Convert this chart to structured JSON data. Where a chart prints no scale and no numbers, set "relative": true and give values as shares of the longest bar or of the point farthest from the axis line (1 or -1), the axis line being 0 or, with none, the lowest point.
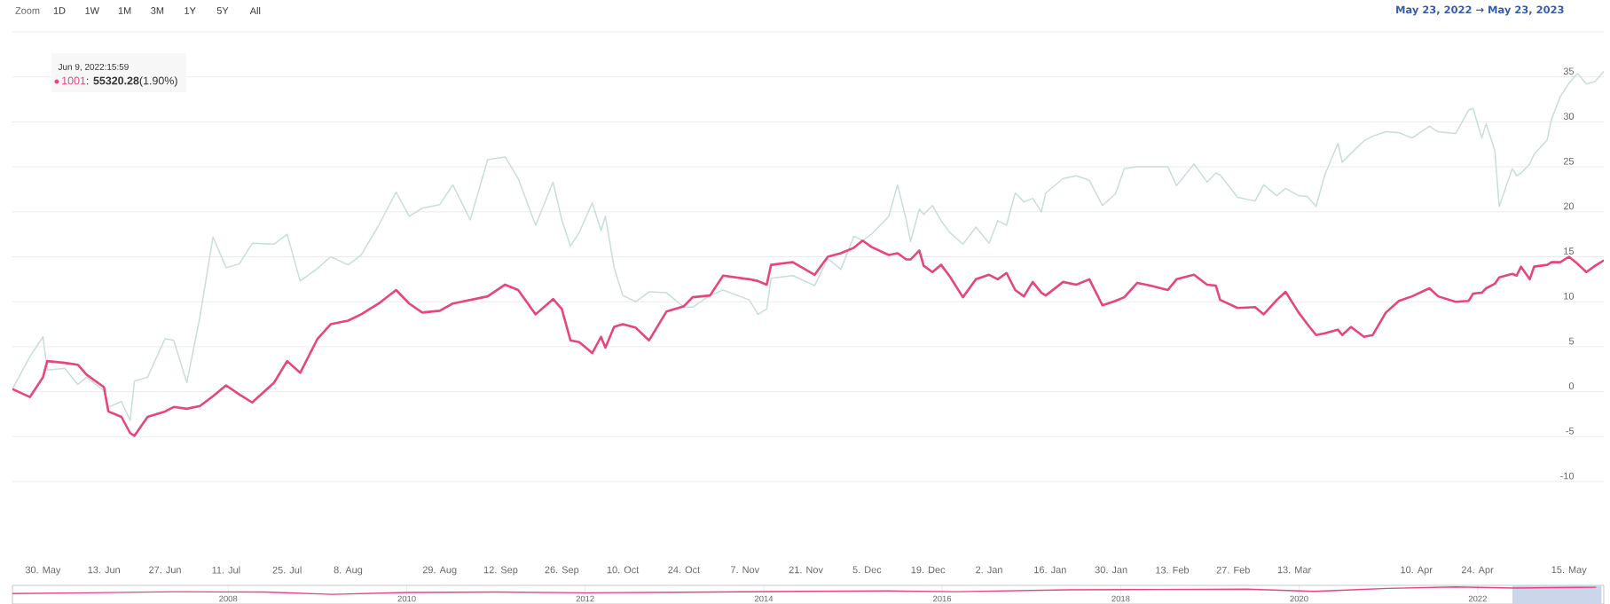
{
  "chart_data": [
    {
      "type": "line",
      "subtitle": "May 23, 2022 → May 23, 2023",
      "annotations": [
        "Zoom",
        "1D",
        "1W",
        "1M",
        "3M",
        "1Y",
        "5Y",
        "All",
        "Jun 9, 2022:15:59",
        ": **55320.28**(1.90%)"
      ],
      "x": [
        "2022-05-23",
        "2022-05-27",
        "2022-05-30",
        "2022-05-31",
        "2022-06-04",
        "2022-06-07",
        "2022-06-09",
        "2022-06-13",
        "2022-06-14",
        "2022-06-17",
        "2022-06-19",
        "2022-06-20",
        "2022-06-23",
        "2022-06-27",
        "2022-06-29",
        "2022-07-02",
        "2022-07-05",
        "2022-07-08",
        "2022-07-11",
        "2022-07-14",
        "2022-07-17",
        "2022-07-22",
        "2022-07-25",
        "2022-07-28",
        "2022-08-01",
        "2022-08-04",
        "2022-08-08",
        "2022-08-11",
        "2022-08-15",
        "2022-08-19",
        "2022-08-22",
        "2022-08-25",
        "2022-08-29",
        "2022-09-01",
        "2022-09-05",
        "2022-09-09",
        "2022-09-13",
        "2022-09-16",
        "2022-09-20",
        "2022-09-24",
        "2022-09-26",
        "2022-09-28",
        "2022-09-30",
        "2022-10-03",
        "2022-10-05",
        "2022-10-06",
        "2022-10-08",
        "2022-10-10",
        "2022-10-13",
        "2022-10-16",
        "2022-10-20",
        "2022-10-24",
        "2022-10-26",
        "2022-10-30",
        "2022-11-02",
        "2022-11-08",
        "2022-11-10",
        "2022-11-12",
        "2022-11-13",
        "2022-11-18",
        "2022-11-23",
        "2022-11-26",
        "2022-11-29",
        "2022-12-02",
        "2022-12-04",
        "2022-12-06",
        "2022-12-10",
        "2022-12-12",
        "2022-12-14",
        "2022-12-15",
        "2022-12-17",
        "2022-12-18",
        "2022-12-20",
        "2022-12-22",
        "2022-12-24",
        "2022-12-27",
        "2022-12-30",
        "2023-01-02",
        "2023-01-04",
        "2023-01-06",
        "2023-01-08",
        "2023-01-10",
        "2023-01-12",
        "2023-01-14",
        "2023-01-15",
        "2023-01-19",
        "2023-01-22",
        "2023-01-25",
        "2023-01-28",
        "2023-01-31",
        "2023-02-02",
        "2023-02-05",
        "2023-02-08",
        "2023-02-12",
        "2023-02-14",
        "2023-02-18",
        "2023-02-21",
        "2023-02-23",
        "2023-02-24",
        "2023-02-28",
        "2023-03-04",
        "2023-03-06",
        "2023-03-09",
        "2023-03-11",
        "2023-03-14",
        "2023-03-16",
        "2023-03-18",
        "2023-03-20",
        "2023-03-23",
        "2023-03-24",
        "2023-03-26",
        "2023-03-29",
        "2023-03-31",
        "2023-04-03",
        "2023-04-06",
        "2023-04-09",
        "2023-04-13",
        "2023-04-15",
        "2023-04-19",
        "2023-04-22",
        "2023-04-23",
        "2023-04-25",
        "2023-04-26",
        "2023-04-28",
        "2023-04-29",
        "2023-05-02",
        "2023-05-03",
        "2023-05-04",
        "2023-05-06",
        "2023-05-07",
        "2023-05-10",
        "2023-05-11",
        "2023-05-13",
        "2023-05-15",
        "2023-05-17",
        "2023-05-19",
        "2023-05-21",
        "2023-05-23"
      ],
      "series": [
        {
          "color": "#c7dedb",
          "values": [
            0.3,
            3.9,
            6.1,
            2.4,
            2.6,
            0.8,
            1.6,
            0.1,
            -1.7,
            -1.1,
            -3.2,
            1.2,
            1.6,
            5.9,
            5.7,
            1.0,
            8.3,
            17.2,
            13.8,
            14.2,
            16.5,
            16.4,
            17.5,
            12.3,
            13.7,
            15.0,
            14.1,
            15.2,
            18.5,
            22.2,
            19.5,
            20.4,
            20.8,
            23.0,
            19.1,
            25.8,
            26.1,
            23.7,
            18.5,
            23.3,
            19.1,
            16.2,
            17.7,
            21.0,
            17.9,
            19.5,
            13.8,
            10.7,
            10.0,
            11.1,
            11.0,
            9.4,
            9.4,
            10.7,
            11.3,
            10.2,
            8.6,
            9.2,
            12.6,
            12.9,
            11.8,
            14.8,
            13.6,
            17.3,
            16.8,
            17.5,
            19.5,
            23.0,
            19.1,
            16.7,
            20.3,
            19.7,
            20.7,
            19.0,
            17.7,
            16.4,
            18.3,
            16.5,
            19.0,
            18.5,
            22.1,
            21.1,
            21.5,
            20.0,
            22.1,
            23.7,
            24.0,
            23.5,
            20.7,
            22.0,
            24.8,
            25.0,
            25.0,
            25.0,
            22.9,
            25.3,
            23.3,
            24.3,
            24.1,
            21.6,
            21.2,
            23.0,
            21.8,
            22.6,
            21.8,
            21.7,
            20.6,
            24.1,
            27.6,
            25.5,
            26.5,
            27.9,
            28.4,
            28.9,
            28.8,
            28.2,
            29.5,
            28.9,
            28.7,
            31.3,
            31.5,
            28.2,
            29.8,
            26.8,
            20.6,
            24.8,
            24.0,
            24.3,
            25.3,
            26.4,
            28.0,
            30.3,
            32.8,
            34.3,
            35.4,
            34.2,
            34.5,
            35.6
          ]
        },
        {
          "name": "1001",
          "color": "#e8457e",
          "values": [
            0.3,
            -0.6,
            1.6,
            3.4,
            3.2,
            3.0,
            1.9,
            0.5,
            -2.2,
            -2.8,
            -4.6,
            -4.9,
            -2.8,
            -2.2,
            -1.7,
            -1.9,
            -1.6,
            -0.5,
            0.7,
            -0.3,
            -1.2,
            1.0,
            3.4,
            2.1,
            5.9,
            7.5,
            7.9,
            8.6,
            9.8,
            11.3,
            9.8,
            8.8,
            9.0,
            9.8,
            10.2,
            10.6,
            11.9,
            11.3,
            8.6,
            10.3,
            9.2,
            5.7,
            5.5,
            4.3,
            6.1,
            4.9,
            7.2,
            7.5,
            7.1,
            5.7,
            8.9,
            9.5,
            10.5,
            10.7,
            12.9,
            12.5,
            12.3,
            11.9,
            14.1,
            14.4,
            13.0,
            15.0,
            15.4,
            16.0,
            16.8,
            16.1,
            15.2,
            15.4,
            14.7,
            14.7,
            15.7,
            14.0,
            13.3,
            14.1,
            12.8,
            10.5,
            12.5,
            13.0,
            12.5,
            13.2,
            11.3,
            10.6,
            12.2,
            11.0,
            10.7,
            12.2,
            11.9,
            12.5,
            9.6,
            10.1,
            10.5,
            12.1,
            11.8,
            11.3,
            12.5,
            13.0,
            11.9,
            11.8,
            10.2,
            9.3,
            9.4,
            8.6,
            10.2,
            11.1,
            8.8,
            7.5,
            6.3,
            6.5,
            6.9,
            6.3,
            7.2,
            6.1,
            6.3,
            8.8,
            10.1,
            10.6,
            11.5,
            10.6,
            10.0,
            10.1,
            10.9,
            11.0,
            11.5,
            12.0,
            12.7,
            13.1,
            12.9,
            13.9,
            12.5,
            13.9,
            14.1,
            14.4,
            14.4,
            15.0,
            14.2,
            13.3,
            14.0,
            14.6
          ]
        }
      ],
      "xlim": [
        "2022-05-23",
        "2023-05-23"
      ],
      "xticks": [
        {
          "value": "2022-05-30",
          "label": "30. May"
        },
        {
          "value": "2022-06-13",
          "label": "13. Jun"
        },
        {
          "value": "2022-06-27",
          "label": "27. Jun"
        },
        {
          "value": "2022-07-11",
          "label": "11. Jul"
        },
        {
          "value": "2022-07-25",
          "label": "25. Jul"
        },
        {
          "value": "2022-08-08",
          "label": "8. Aug"
        },
        {
          "value": "2022-08-29",
          "label": "29. Aug"
        },
        {
          "value": "2022-09-12",
          "label": "12. Sep"
        },
        {
          "value": "2022-09-26",
          "label": "26. Sep"
        },
        {
          "value": "2022-10-10",
          "label": "10. Oct"
        },
        {
          "value": "2022-10-24",
          "label": "24. Oct"
        },
        {
          "value": "2022-11-07",
          "label": "7. Nov"
        },
        {
          "value": "2022-11-21",
          "label": "21. Nov"
        },
        {
          "value": "2022-12-05",
          "label": "5. Dec"
        },
        {
          "value": "2022-12-19",
          "label": "19. Dec"
        },
        {
          "value": "2023-01-02",
          "label": "2. Jan"
        },
        {
          "value": "2023-01-16",
          "label": "16. Jan"
        },
        {
          "value": "2023-01-30",
          "label": "30. Jan"
        },
        {
          "value": "2023-02-13",
          "label": "13. Feb"
        },
        {
          "value": "2023-02-27",
          "label": "27. Feb"
        },
        {
          "value": "2023-03-13",
          "label": "13. Mar"
        },
        {
          "value": "2023-04-10",
          "label": "10. Apr"
        },
        {
          "value": "2023-04-24",
          "label": "24. Apr"
        },
        {
          "value": "2023-05-15",
          "label": "15. May"
        }
      ],
      "ylim": [
        -10,
        40
      ],
      "yticks": [
        -10,
        -5,
        0,
        5,
        10,
        15,
        20,
        25,
        30,
        35,
        {
          "value": 40,
          "label": null
        }
      ],
      "grid": "y"
    },
    {
      "type": "line",
      "relative": true,
      "x": [
        "2005-08",
        "2006-06",
        "2007-06",
        "2008-06",
        "2009-03",
        "2010-01",
        "2011-01",
        "2012-01",
        "2013-06",
        "2014-06",
        "2015-06",
        "2016-03",
        "2017-06",
        "2018-06",
        "2019-06",
        "2020-03",
        "2021-01",
        "2021-10",
        "2022-06",
        "2023-05"
      ],
      "series": [
        {
          "color": "#e8457e",
          "values": [
            0.1,
            0.2,
            0.35,
            0.3,
            0.0,
            0.25,
            0.3,
            0.2,
            0.3,
            0.4,
            0.45,
            0.35,
            0.6,
            0.65,
            0.7,
            0.4,
            0.8,
            1.0,
            0.85,
            0.95
          ]
        }
      ],
      "xlim": [
        "2005-08",
        "2023-06"
      ],
      "xticks": [
        {
          "value": "2008",
          "label": "2008"
        },
        {
          "value": "2010",
          "label": "2010"
        },
        {
          "value": "2012",
          "label": "2012"
        },
        {
          "value": "2014",
          "label": "2014"
        },
        {
          "value": "2016",
          "label": "2016"
        },
        {
          "value": "2018",
          "label": "2018"
        },
        {
          "value": "2020",
          "label": "2020"
        },
        {
          "value": "2022",
          "label": "2022"
        }
      ],
      "bands": [
        {
          "axis": "x",
          "from": "2022-05-23",
          "to": "2023-05-23",
          "color": "#ccd6eb"
        }
      ],
      "grid": "x"
    }
  ]
}
